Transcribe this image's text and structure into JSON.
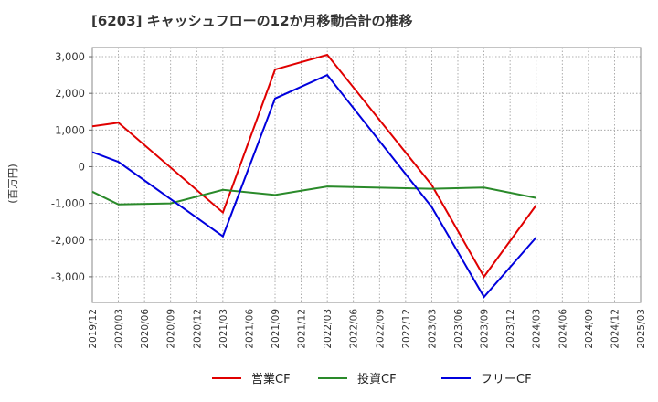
{
  "chart_data": {
    "type": "line",
    "title": "[6203]  キャッシュフローの12か月移動合計の推移",
    "xlabel": "",
    "ylabel": "(百万円)",
    "ylim": [
      -3700,
      3250
    ],
    "yticks": [
      3000,
      2000,
      1000,
      0,
      -1000,
      -2000,
      -3000
    ],
    "ytick_labels": [
      "3,000",
      "2,000",
      "1,000",
      "0",
      "-1,000",
      "-2,000",
      "-3,000"
    ],
    "categories": [
      "2019/12",
      "2020/03",
      "2020/06",
      "2020/09",
      "2020/12",
      "2021/03",
      "2021/06",
      "2021/09",
      "2021/12",
      "2022/03",
      "2022/06",
      "2022/09",
      "2022/12",
      "2023/03",
      "2023/06",
      "2023/09",
      "2023/12",
      "2024/03",
      "2024/06",
      "2024/09",
      "2024/12",
      "2025/03"
    ],
    "grid": true,
    "legend_position": "bottom",
    "series": [
      {
        "name": "営業CF",
        "color": "#e00000",
        "values": [
          1100,
          1200,
          null,
          null,
          null,
          -1250,
          null,
          2650,
          null,
          3050,
          null,
          null,
          null,
          -500,
          null,
          -3000,
          null,
          -1050,
          null,
          null,
          null,
          null
        ]
      },
      {
        "name": "投資CF",
        "color": "#2a8a2a",
        "values": [
          -680,
          -1030,
          null,
          -1000,
          null,
          -630,
          null,
          -770,
          null,
          -540,
          null,
          null,
          null,
          -600,
          null,
          -570,
          null,
          -850,
          null,
          null,
          null,
          null
        ]
      },
      {
        "name": "フリーCF",
        "color": "#0000dd",
        "values": [
          400,
          130,
          null,
          null,
          null,
          -1900,
          null,
          1860,
          null,
          2500,
          null,
          null,
          null,
          -1100,
          null,
          -3550,
          null,
          -1930,
          null,
          null,
          null,
          null
        ]
      }
    ]
  }
}
